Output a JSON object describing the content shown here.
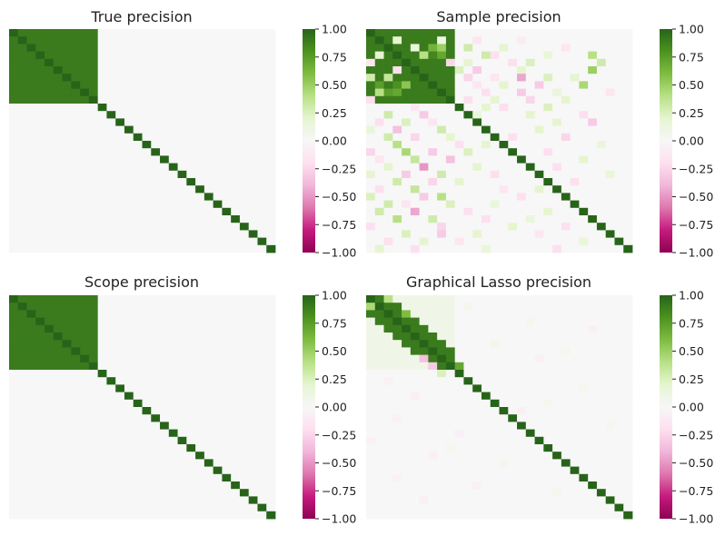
{
  "figure": {
    "background": "#ffffff"
  },
  "colormap": {
    "name": "PiYG",
    "stops": [
      "#8e0152",
      "#c51b7d",
      "#de77ae",
      "#f1b6da",
      "#fde0ef",
      "#f7f7f7",
      "#e6f5d0",
      "#b8e186",
      "#7fbc41",
      "#4d9221",
      "#276419"
    ],
    "vmin": -1.0,
    "vmax": 1.0,
    "ticks": [
      1.0,
      0.75,
      0.5,
      0.25,
      0.0,
      -0.25,
      -0.5,
      -0.75,
      -1.0
    ],
    "tick_labels": [
      "1.00",
      "0.75",
      "0.50",
      "0.25",
      "0.00",
      "−0.25",
      "−0.50",
      "−0.75",
      "−1.00"
    ]
  },
  "chart_data": [
    {
      "type": "heatmap",
      "title": "True precision",
      "size": 30,
      "grid": false,
      "diagonal": 1.0,
      "blocks": [
        {
          "start": 0,
          "end": 10,
          "value": 0.9
        }
      ],
      "noise": [],
      "colorbar": true
    },
    {
      "type": "heatmap",
      "title": "Sample precision",
      "size": 30,
      "grid": false,
      "diagonal": 1.0,
      "blocks": [
        {
          "start": 0,
          "end": 10,
          "value": 0.9
        }
      ],
      "noise": [
        {
          "r": 1,
          "c": 3,
          "v": 0.2
        },
        {
          "r": 1,
          "c": 8,
          "v": 0.1
        },
        {
          "r": 1,
          "c": 12,
          "v": -0.15
        },
        {
          "r": 1,
          "c": 17,
          "v": -0.1
        },
        {
          "r": 2,
          "c": 5,
          "v": 0.15
        },
        {
          "r": 2,
          "c": 7,
          "v": 0.65
        },
        {
          "r": 2,
          "c": 8,
          "v": 0.5
        },
        {
          "r": 2,
          "c": 11,
          "v": 0.3
        },
        {
          "r": 2,
          "c": 15,
          "v": 0.2
        },
        {
          "r": 2,
          "c": 22,
          "v": -0.15
        },
        {
          "r": 3,
          "c": 1,
          "v": 0.2
        },
        {
          "r": 3,
          "c": 6,
          "v": 0.4
        },
        {
          "r": 3,
          "c": 7,
          "v": 0.85
        },
        {
          "r": 3,
          "c": 8,
          "v": 0.7
        },
        {
          "r": 3,
          "c": 13,
          "v": 0.3
        },
        {
          "r": 3,
          "c": 14,
          "v": -0.2
        },
        {
          "r": 3,
          "c": 20,
          "v": 0.15
        },
        {
          "r": 3,
          "c": 25,
          "v": 0.4
        },
        {
          "r": 4,
          "c": 0,
          "v": -0.15
        },
        {
          "r": 4,
          "c": 9,
          "v": -0.25
        },
        {
          "r": 4,
          "c": 11,
          "v": 0.2
        },
        {
          "r": 4,
          "c": 16,
          "v": -0.2
        },
        {
          "r": 4,
          "c": 18,
          "v": 0.25
        },
        {
          "r": 4,
          "c": 26,
          "v": 0.3
        },
        {
          "r": 5,
          "c": 3,
          "v": -0.2
        },
        {
          "r": 5,
          "c": 10,
          "v": 0.25
        },
        {
          "r": 5,
          "c": 12,
          "v": -0.3
        },
        {
          "r": 5,
          "c": 17,
          "v": 0.2
        },
        {
          "r": 5,
          "c": 25,
          "v": 0.5
        },
        {
          "r": 6,
          "c": 0,
          "v": 0.3
        },
        {
          "r": 6,
          "c": 2,
          "v": 0.35
        },
        {
          "r": 6,
          "c": 11,
          "v": -0.25
        },
        {
          "r": 6,
          "c": 14,
          "v": -0.15
        },
        {
          "r": 6,
          "c": 17,
          "v": -0.45
        },
        {
          "r": 6,
          "c": 20,
          "v": 0.25
        },
        {
          "r": 6,
          "c": 23,
          "v": 0.2
        },
        {
          "r": 7,
          "c": 1,
          "v": 0.75
        },
        {
          "r": 7,
          "c": 3,
          "v": 0.8
        },
        {
          "r": 7,
          "c": 4,
          "v": 0.55
        },
        {
          "r": 7,
          "c": 12,
          "v": -0.15
        },
        {
          "r": 7,
          "c": 15,
          "v": 0.2
        },
        {
          "r": 7,
          "c": 19,
          "v": -0.3
        },
        {
          "r": 7,
          "c": 24,
          "v": 0.45
        },
        {
          "r": 8,
          "c": 1,
          "v": 0.4
        },
        {
          "r": 8,
          "c": 2,
          "v": 0.75
        },
        {
          "r": 8,
          "c": 3,
          "v": 0.7
        },
        {
          "r": 8,
          "c": 13,
          "v": -0.2
        },
        {
          "r": 8,
          "c": 17,
          "v": -0.3
        },
        {
          "r": 8,
          "c": 21,
          "v": 0.15
        },
        {
          "r": 8,
          "c": 27,
          "v": -0.15
        },
        {
          "r": 9,
          "c": 0,
          "v": -0.2
        },
        {
          "r": 9,
          "c": 11,
          "v": -0.2
        },
        {
          "r": 9,
          "c": 14,
          "v": 0.2
        },
        {
          "r": 9,
          "c": 18,
          "v": -0.25
        },
        {
          "r": 9,
          "c": 22,
          "v": 0.2
        },
        {
          "r": 10,
          "c": 5,
          "v": -0.15
        },
        {
          "r": 10,
          "c": 13,
          "v": 0.2
        },
        {
          "r": 10,
          "c": 15,
          "v": -0.2
        },
        {
          "r": 10,
          "c": 20,
          "v": 0.25
        },
        {
          "r": 11,
          "c": 2,
          "v": 0.3
        },
        {
          "r": 11,
          "c": 6,
          "v": -0.3
        },
        {
          "r": 11,
          "c": 12,
          "v": 0.15
        },
        {
          "r": 11,
          "c": 18,
          "v": 0.2
        },
        {
          "r": 11,
          "c": 24,
          "v": -0.2
        },
        {
          "r": 12,
          "c": 1,
          "v": -0.2
        },
        {
          "r": 12,
          "c": 4,
          "v": 0.25
        },
        {
          "r": 12,
          "c": 7,
          "v": -0.15
        },
        {
          "r": 12,
          "c": 21,
          "v": 0.2
        },
        {
          "r": 12,
          "c": 25,
          "v": -0.3
        },
        {
          "r": 13,
          "c": 0,
          "v": 0.15
        },
        {
          "r": 13,
          "c": 3,
          "v": -0.35
        },
        {
          "r": 13,
          "c": 8,
          "v": 0.3
        },
        {
          "r": 13,
          "c": 19,
          "v": 0.2
        },
        {
          "r": 14,
          "c": 2,
          "v": 0.3
        },
        {
          "r": 14,
          "c": 5,
          "v": -0.25
        },
        {
          "r": 14,
          "c": 9,
          "v": 0.2
        },
        {
          "r": 14,
          "c": 16,
          "v": -0.2
        },
        {
          "r": 14,
          "c": 22,
          "v": -0.25
        },
        {
          "r": 15,
          "c": 3,
          "v": 0.4
        },
        {
          "r": 15,
          "c": 10,
          "v": -0.2
        },
        {
          "r": 15,
          "c": 13,
          "v": 0.2
        },
        {
          "r": 15,
          "c": 26,
          "v": 0.15
        },
        {
          "r": 16,
          "c": 0,
          "v": -0.25
        },
        {
          "r": 16,
          "c": 4,
          "v": 0.45
        },
        {
          "r": 16,
          "c": 7,
          "v": -0.3
        },
        {
          "r": 16,
          "c": 11,
          "v": 0.25
        },
        {
          "r": 16,
          "c": 20,
          "v": -0.2
        },
        {
          "r": 17,
          "c": 1,
          "v": -0.15
        },
        {
          "r": 17,
          "c": 5,
          "v": 0.35
        },
        {
          "r": 17,
          "c": 9,
          "v": -0.35
        },
        {
          "r": 17,
          "c": 24,
          "v": 0.2
        },
        {
          "r": 18,
          "c": 2,
          "v": 0.2
        },
        {
          "r": 18,
          "c": 6,
          "v": -0.5
        },
        {
          "r": 18,
          "c": 12,
          "v": 0.2
        },
        {
          "r": 18,
          "c": 21,
          "v": -0.2
        },
        {
          "r": 19,
          "c": 0,
          "v": 0.2
        },
        {
          "r": 19,
          "c": 4,
          "v": -0.3
        },
        {
          "r": 19,
          "c": 8,
          "v": 0.3
        },
        {
          "r": 19,
          "c": 14,
          "v": -0.2
        },
        {
          "r": 19,
          "c": 27,
          "v": 0.15
        },
        {
          "r": 20,
          "c": 3,
          "v": 0.3
        },
        {
          "r": 20,
          "c": 7,
          "v": -0.25
        },
        {
          "r": 20,
          "c": 10,
          "v": 0.2
        },
        {
          "r": 20,
          "c": 23,
          "v": -0.2
        },
        {
          "r": 21,
          "c": 1,
          "v": -0.2
        },
        {
          "r": 21,
          "c": 5,
          "v": 0.35
        },
        {
          "r": 21,
          "c": 15,
          "v": -0.15
        },
        {
          "r": 21,
          "c": 19,
          "v": 0.2
        },
        {
          "r": 22,
          "c": 0,
          "v": 0.25
        },
        {
          "r": 22,
          "c": 6,
          "v": -0.3
        },
        {
          "r": 22,
          "c": 8,
          "v": 0.4
        },
        {
          "r": 22,
          "c": 17,
          "v": -0.2
        },
        {
          "r": 23,
          "c": 2,
          "v": 0.3
        },
        {
          "r": 23,
          "c": 4,
          "v": -0.15
        },
        {
          "r": 23,
          "c": 9,
          "v": 0.25
        },
        {
          "r": 23,
          "c": 14,
          "v": 0.15
        },
        {
          "r": 24,
          "c": 1,
          "v": 0.3
        },
        {
          "r": 24,
          "c": 5,
          "v": -0.45
        },
        {
          "r": 24,
          "c": 11,
          "v": -0.2
        },
        {
          "r": 24,
          "c": 20,
          "v": 0.2
        },
        {
          "r": 25,
          "c": 3,
          "v": 0.4
        },
        {
          "r": 25,
          "c": 7,
          "v": 0.3
        },
        {
          "r": 25,
          "c": 13,
          "v": -0.2
        },
        {
          "r": 25,
          "c": 18,
          "v": 0.15
        },
        {
          "r": 26,
          "c": 0,
          "v": -0.2
        },
        {
          "r": 26,
          "c": 8,
          "v": -0.25
        },
        {
          "r": 26,
          "c": 16,
          "v": 0.2
        },
        {
          "r": 26,
          "c": 22,
          "v": -0.2
        },
        {
          "r": 27,
          "c": 4,
          "v": 0.25
        },
        {
          "r": 27,
          "c": 8,
          "v": -0.3
        },
        {
          "r": 27,
          "c": 12,
          "v": 0.2
        },
        {
          "r": 27,
          "c": 19,
          "v": -0.15
        },
        {
          "r": 28,
          "c": 2,
          "v": -0.2
        },
        {
          "r": 28,
          "c": 6,
          "v": 0.2
        },
        {
          "r": 28,
          "c": 10,
          "v": -0.15
        },
        {
          "r": 28,
          "c": 24,
          "v": 0.15
        },
        {
          "r": 29,
          "c": 1,
          "v": 0.2
        },
        {
          "r": 29,
          "c": 5,
          "v": -0.2
        },
        {
          "r": 29,
          "c": 13,
          "v": 0.15
        },
        {
          "r": 29,
          "c": 21,
          "v": -0.2
        }
      ],
      "colorbar": true
    },
    {
      "type": "heatmap",
      "title": "Scope precision",
      "size": 30,
      "grid": false,
      "diagonal": 1.0,
      "blocks": [
        {
          "start": 0,
          "end": 10,
          "value": 0.9
        }
      ],
      "noise": [],
      "colorbar": true
    },
    {
      "type": "heatmap",
      "title": "Graphical Lasso precision",
      "size": 30,
      "grid": false,
      "diagonal": 1.0,
      "blocks": [
        {
          "start": 0,
          "end": 10,
          "value": 0.9,
          "near_band": 2,
          "far_value": 0.08
        }
      ],
      "noise": [
        {
          "r": 0,
          "c": 2,
          "v": 0.4
        },
        {
          "r": 1,
          "c": 0,
          "v": 0.45
        },
        {
          "r": 2,
          "c": 4,
          "v": 0.6
        },
        {
          "r": 8,
          "c": 6,
          "v": -0.35
        },
        {
          "r": 9,
          "c": 7,
          "v": -0.3
        },
        {
          "r": 9,
          "c": 10,
          "v": 0.7
        },
        {
          "r": 10,
          "c": 8,
          "v": 0.25
        },
        {
          "r": 1,
          "c": 11,
          "v": 0.05
        },
        {
          "r": 3,
          "c": 18,
          "v": 0.05
        },
        {
          "r": 4,
          "c": 25,
          "v": -0.06
        },
        {
          "r": 6,
          "c": 14,
          "v": 0.06
        },
        {
          "r": 7,
          "c": 22,
          "v": 0.05
        },
        {
          "r": 8,
          "c": 19,
          "v": -0.06
        },
        {
          "r": 11,
          "c": 2,
          "v": -0.05
        },
        {
          "r": 12,
          "c": 24,
          "v": 0.05
        },
        {
          "r": 13,
          "c": 5,
          "v": -0.07
        },
        {
          "r": 14,
          "c": 20,
          "v": 0.05
        },
        {
          "r": 15,
          "c": 17,
          "v": -0.06
        },
        {
          "r": 16,
          "c": 3,
          "v": -0.05
        },
        {
          "r": 17,
          "c": 27,
          "v": 0.05
        },
        {
          "r": 18,
          "c": 10,
          "v": -0.06
        },
        {
          "r": 19,
          "c": 0,
          "v": -0.05
        },
        {
          "r": 20,
          "c": 9,
          "v": 0.05
        },
        {
          "r": 21,
          "c": 7,
          "v": -0.07
        },
        {
          "r": 22,
          "c": 15,
          "v": 0.05
        },
        {
          "r": 24,
          "c": 3,
          "v": -0.05
        },
        {
          "r": 25,
          "c": 12,
          "v": -0.07
        },
        {
          "r": 26,
          "c": 21,
          "v": 0.05
        },
        {
          "r": 27,
          "c": 6,
          "v": -0.06
        }
      ],
      "colorbar": true
    }
  ]
}
